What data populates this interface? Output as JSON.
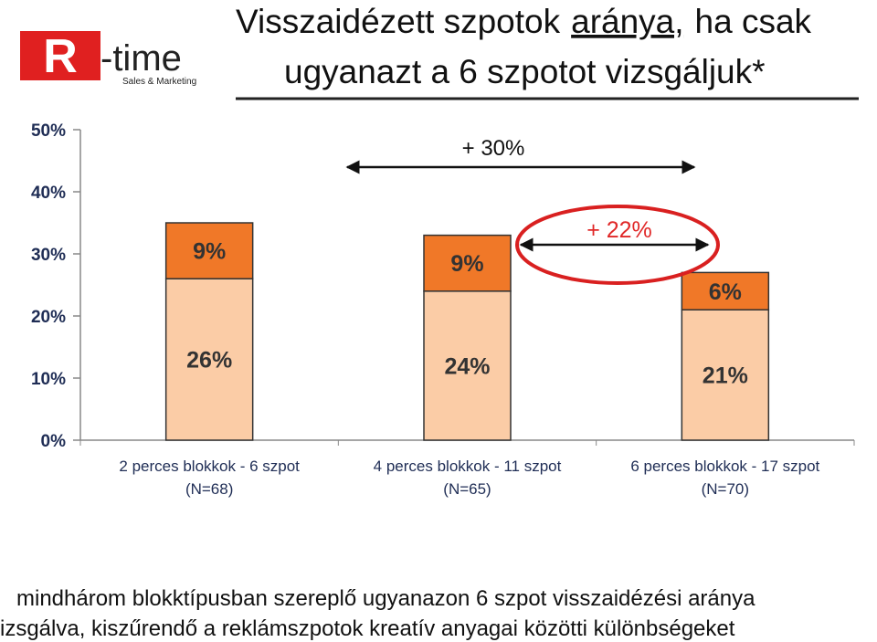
{
  "chart_data": {
    "type": "stacked-bar",
    "title": [
      "Visszaidézett szpotok",
      "aránya,",
      "ha csak",
      "ugyanazt a 6 szpotot vizsgáljuk*"
    ],
    "categories": [
      "2 perces blokkok - 6 szpot",
      "4 perces blokkok - 11 szpot",
      "6 perces blokkok - 17 szpot"
    ],
    "category_sublabels": [
      "(N=68)",
      "(N=65)",
      "(N=70)"
    ],
    "series": [
      {
        "color": "#fbcca6",
        "values": [
          26,
          24,
          21
        ],
        "value_labels": [
          "26%",
          "24%",
          "21%"
        ]
      },
      {
        "color": "#f07828",
        "values": [
          9,
          9,
          6
        ],
        "value_labels": [
          "9%",
          "9%",
          "6%"
        ]
      }
    ],
    "ylim": [
      0,
      50
    ],
    "yticks": [
      {
        "value": 0,
        "label": "0%"
      },
      {
        "value": 10,
        "label": "10%"
      },
      {
        "value": 20,
        "label": "20%"
      },
      {
        "value": 30,
        "label": "30%"
      },
      {
        "value": 40,
        "label": "40%"
      },
      {
        "value": 50,
        "label": "50%"
      }
    ],
    "annotations": [
      "+ 30%",
      "+ 22%"
    ]
  },
  "logo": {
    "mark": "R",
    "name": "-time",
    "tagline": "Sales & Marketing"
  },
  "footnote": [
    "mindhárom blokktípusban szereplő ugyanazon 6 szpot visszaidézési aránya",
    "izsgálva, kiszűrendő a reklámszpotok kreatív anyagai közötti különbségeket"
  ]
}
